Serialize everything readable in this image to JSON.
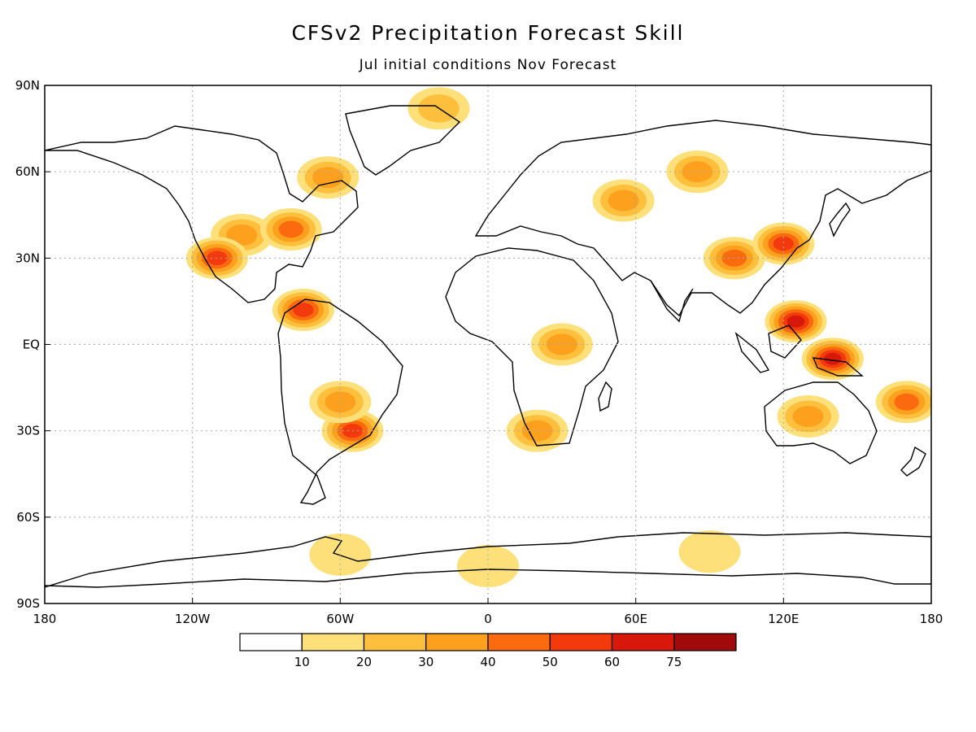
{
  "title": "CFSv2 Precipitation Forecast Skill",
  "subtitle": "Jul initial conditions   Nov Forecast",
  "map": {
    "lon_ticks": [
      "180",
      "120W",
      "60W",
      "0",
      "60E",
      "120E",
      "180"
    ],
    "lat_ticks": [
      "90N",
      "60N",
      "30N",
      "EQ",
      "30S",
      "60S",
      "90S"
    ],
    "lon_range": [
      -180,
      180
    ],
    "lat_range": [
      -90,
      90
    ],
    "grid": true,
    "projection": "cylindrical equidistant"
  },
  "colorbar": {
    "labels": [
      "10",
      "20",
      "30",
      "40",
      "50",
      "60",
      "75"
    ],
    "colors": [
      "#ffffff",
      "#fde07a",
      "#fdbf3c",
      "#fca01e",
      "#fb6a0e",
      "#f23a0c",
      "#d7180b",
      "#a00a0a"
    ]
  },
  "skill_regions": [
    {
      "lon": -100,
      "lat": 38,
      "level": 3
    },
    {
      "lon": -110,
      "lat": 30,
      "level": 5
    },
    {
      "lon": -80,
      "lat": 40,
      "level": 4
    },
    {
      "lon": -65,
      "lat": 58,
      "level": 3
    },
    {
      "lon": -75,
      "lat": 12,
      "level": 5
    },
    {
      "lon": -55,
      "lat": -30,
      "level": 5
    },
    {
      "lon": -60,
      "lat": -20,
      "level": 3
    },
    {
      "lon": 100,
      "lat": 30,
      "level": 4
    },
    {
      "lon": 120,
      "lat": 35,
      "level": 5
    },
    {
      "lon": 125,
      "lat": 8,
      "level": 6
    },
    {
      "lon": 140,
      "lat": -5,
      "level": 6
    },
    {
      "lon": 130,
      "lat": -25,
      "level": 3
    },
    {
      "lon": 55,
      "lat": 50,
      "level": 3
    },
    {
      "lon": 85,
      "lat": 60,
      "level": 3
    },
    {
      "lon": 30,
      "lat": 0,
      "level": 3
    },
    {
      "lon": 20,
      "lat": -30,
      "level": 3
    },
    {
      "lon": 0,
      "lat": -77,
      "level": 1
    },
    {
      "lon": -60,
      "lat": -73,
      "level": 1
    },
    {
      "lon": 90,
      "lat": -72,
      "level": 1
    },
    {
      "lon": -20,
      "lat": 82,
      "level": 2
    },
    {
      "lon": 170,
      "lat": -20,
      "level": 4
    }
  ]
}
